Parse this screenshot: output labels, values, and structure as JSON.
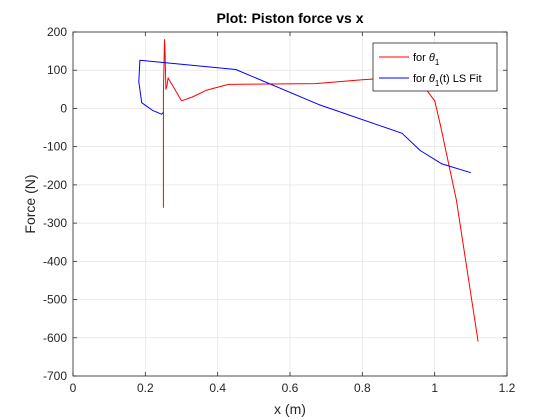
{
  "chart_data": {
    "type": "line",
    "title": "Plot: Piston force vs x",
    "xlabel": "x (m)",
    "ylabel": "Force (N)",
    "xlim": [
      0,
      1.2
    ],
    "ylim": [
      -700,
      200
    ],
    "x_ticks": [
      0,
      0.2,
      0.4,
      0.6,
      0.8,
      1,
      1.2
    ],
    "x_tick_labels": [
      "0",
      "0.2",
      "0.4",
      "0.6",
      "0.8",
      "1",
      "1.2"
    ],
    "y_ticks": [
      200,
      100,
      0,
      -100,
      -200,
      -300,
      -400,
      -500,
      -600,
      -700
    ],
    "y_tick_labels": [
      "200",
      "100",
      "0",
      "-100",
      "-200",
      "-300",
      "-400",
      "-500",
      "-600",
      "-700"
    ],
    "grid": true,
    "legend_position": "top-right",
    "series": [
      {
        "legend_prefix": "for ",
        "symbol": "θ",
        "subscript": "1",
        "legend_suffix": "",
        "color": "#ff0000",
        "x": [
          0.25,
          0.25,
          0.253,
          0.254,
          0.257,
          0.26,
          0.263,
          0.3,
          0.33,
          0.37,
          0.43,
          0.67,
          0.8,
          0.88,
          0.95,
          1.0,
          1.015,
          1.06,
          1.12
        ],
        "y": [
          -260,
          40,
          180,
          160,
          50,
          60,
          80,
          20,
          30,
          48,
          63,
          65,
          75,
          80,
          82,
          20,
          -40,
          -240,
          -610
        ]
      },
      {
        "legend_prefix": "for ",
        "symbol": "θ",
        "subscript": "1",
        "legend_suffix": "(t) LS Fit",
        "color": "#0000ff",
        "x": [
          0.25,
          0.245,
          0.22,
          0.19,
          0.182,
          0.185,
          0.45,
          0.68,
          0.91,
          0.96,
          1.02,
          1.1
        ],
        "y": [
          -10,
          -15,
          -5,
          15,
          70,
          126,
          102,
          10,
          -65,
          -110,
          -145,
          -168
        ]
      }
    ]
  }
}
